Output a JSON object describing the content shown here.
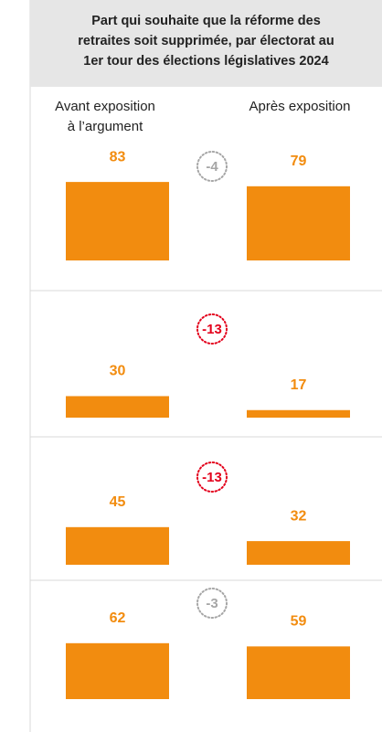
{
  "chart_data": {
    "type": "bar",
    "title": "Part qui souhaite que la réforme des\nretraites soit supprimée, par électorat au\n1er tour des élections législatives 2024",
    "series": [
      {
        "name": "Avant exposition\nà l’argument",
        "color": "#f28c0f",
        "values": [
          83,
          30,
          45,
          62
        ]
      },
      {
        "name": "Après exposition",
        "color": "#f28c0f",
        "values": [
          79,
          17,
          32,
          59
        ]
      }
    ],
    "differences": [
      -4,
      -13,
      -13,
      -3
    ],
    "difference_colors": [
      "#a6a6a6",
      "#e3001b",
      "#e3001b",
      "#a6a6a6"
    ],
    "ylim": [
      10,
      95
    ]
  }
}
